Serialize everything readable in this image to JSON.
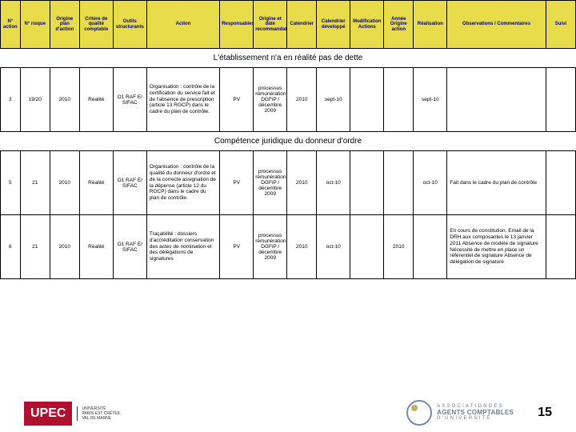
{
  "headers": [
    "N° action",
    "N° risque",
    "Origine plan d'action",
    "Critère de qualité comptable",
    "Outils structurants",
    "Action",
    "Responsables",
    "Origine et date recommandation",
    "Calendrier",
    "Calendrier développé",
    "Modification Actions",
    "Année Origine action",
    "Réalisation",
    "Observations / Commentaires",
    "Suivi"
  ],
  "sections": [
    {
      "title": "L'établissement n'a en réalité pas de dette"
    },
    {
      "title": "Compétence juridique du donneur d'ordre"
    }
  ],
  "rows": [
    {
      "num_action": "3",
      "num_risque": "19/20",
      "origine": "2010",
      "critere": "Réalité",
      "outils": "O1 RAF E/ SIFAC",
      "action": "Organisation : contrôle de la certification du service fait et de l'absence de prescription (article 13 RGCP) dans le cadre du plan de contrôle.",
      "resp": "PV",
      "origine_date": "processus rémunération DGFiP / décembre 2009",
      "calendrier": "2010",
      "cal_dev": "sept-10",
      "modif": "",
      "annee": "",
      "realisation": "sept-10",
      "obs": "",
      "suivi": ""
    },
    {
      "num_action": "5",
      "num_risque": "21",
      "origine": "2010",
      "critere": "Réalité",
      "outils": "O1 RAF E/ SIFAC",
      "action": "Organisation : contrôle de la qualité du donneur d'ordre et de la correcte assignation de la dépense (article 12 du RGCP) dans le cadre du plan de contrôle.",
      "resp": "PV",
      "origine_date": "processus rémunération DGFiP / décembre 2009",
      "calendrier": "2010",
      "cal_dev": "oct-10",
      "modif": "",
      "annee": "",
      "realisation": "oct-10",
      "obs": "Fait dans le cadre du plan de contrôle",
      "suivi": ""
    },
    {
      "num_action": "6",
      "num_risque": "21",
      "origine": "2010",
      "critere": "Réalité",
      "outils": "O1 RAF E/ SIFAC",
      "action": "Traçabilité : dossiers d'accréditation conservation des actes de nomination et des délégations de signatures",
      "resp": "PV",
      "origine_date": "processus rémunération DGFiP / décembre 2009",
      "calendrier": "2010",
      "cal_dev": "oct-10",
      "modif": "",
      "annee": "2010",
      "realisation": "",
      "obs": "En cours de constitution.\nEmail de la DRH aux composantes le 13 janvier 2011\n\nAbsence de modèle de signature\nNécessité de mettre en place un référentiel de signature\nAbsence de délégation de signature",
      "suivi": ""
    }
  ],
  "footer": {
    "upec": "UPEC",
    "upec_sub": "UNIVERSITÉ\nPARIS-EST CRÉTEIL\nVAL DE MARNE",
    "acu_line1": "A S S O C I A T I O N   D E S",
    "acu_line2": "AGENTS COMPTABLES",
    "acu_line3": "D ' U N I V E R S I T É",
    "page": "15"
  }
}
